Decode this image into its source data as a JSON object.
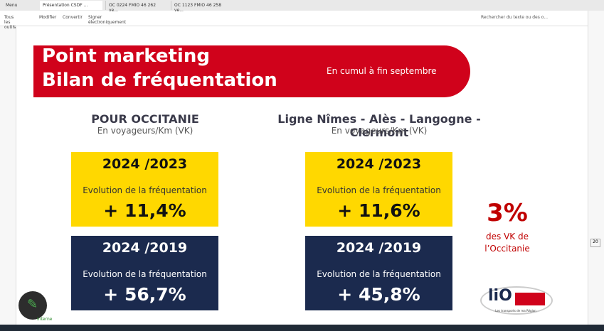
{
  "tabs": [
    "Menu",
    "Présentation CSDF ...",
    "OC 0224 FMIO 46 262 ve...",
    "OC 1123 FMIO 46 258 ve..."
  ],
  "toolbar": {
    "items": [
      "Tous les outils",
      "Modifier",
      "Convertir",
      "Signer électroniquement"
    ],
    "search": "Rechercher du texte ou des o..."
  },
  "slide": {
    "title": [
      "Point marketing",
      "Bilan de fréquentation"
    ],
    "subtitle": "En cumul à fin septembre",
    "columns": [
      {
        "heading": "POUR OCCITANIE",
        "unit": "En voyageurs/Km (VK)",
        "boxes": [
          {
            "period": "2024 /2023",
            "label": "Evolution de la fréquentation",
            "value": "+ 11,4%"
          },
          {
            "period": "2024 /2019",
            "label": "Evolution de la fréquentation",
            "value": "+ 56,7%"
          }
        ]
      },
      {
        "heading": "Ligne Nîmes - Alès - Langogne - Clermont",
        "unit": "En voyageurs/Km (VK)",
        "boxes": [
          {
            "period": "2024 /2023",
            "label": "Evolution de la fréquentation",
            "value": "+ 11,6%"
          },
          {
            "period": "2024 /2019",
            "label": "Evolution de la fréquentation",
            "value": "+ 45,8%"
          }
        ]
      }
    ],
    "share": {
      "value": "3%",
      "text": [
        "des VK de",
        "l’Occitanie"
      ]
    },
    "logo": {
      "name": "liO",
      "tagline": "Les transports de ma Région"
    },
    "footer": "Interne"
  },
  "page_number": "20"
}
